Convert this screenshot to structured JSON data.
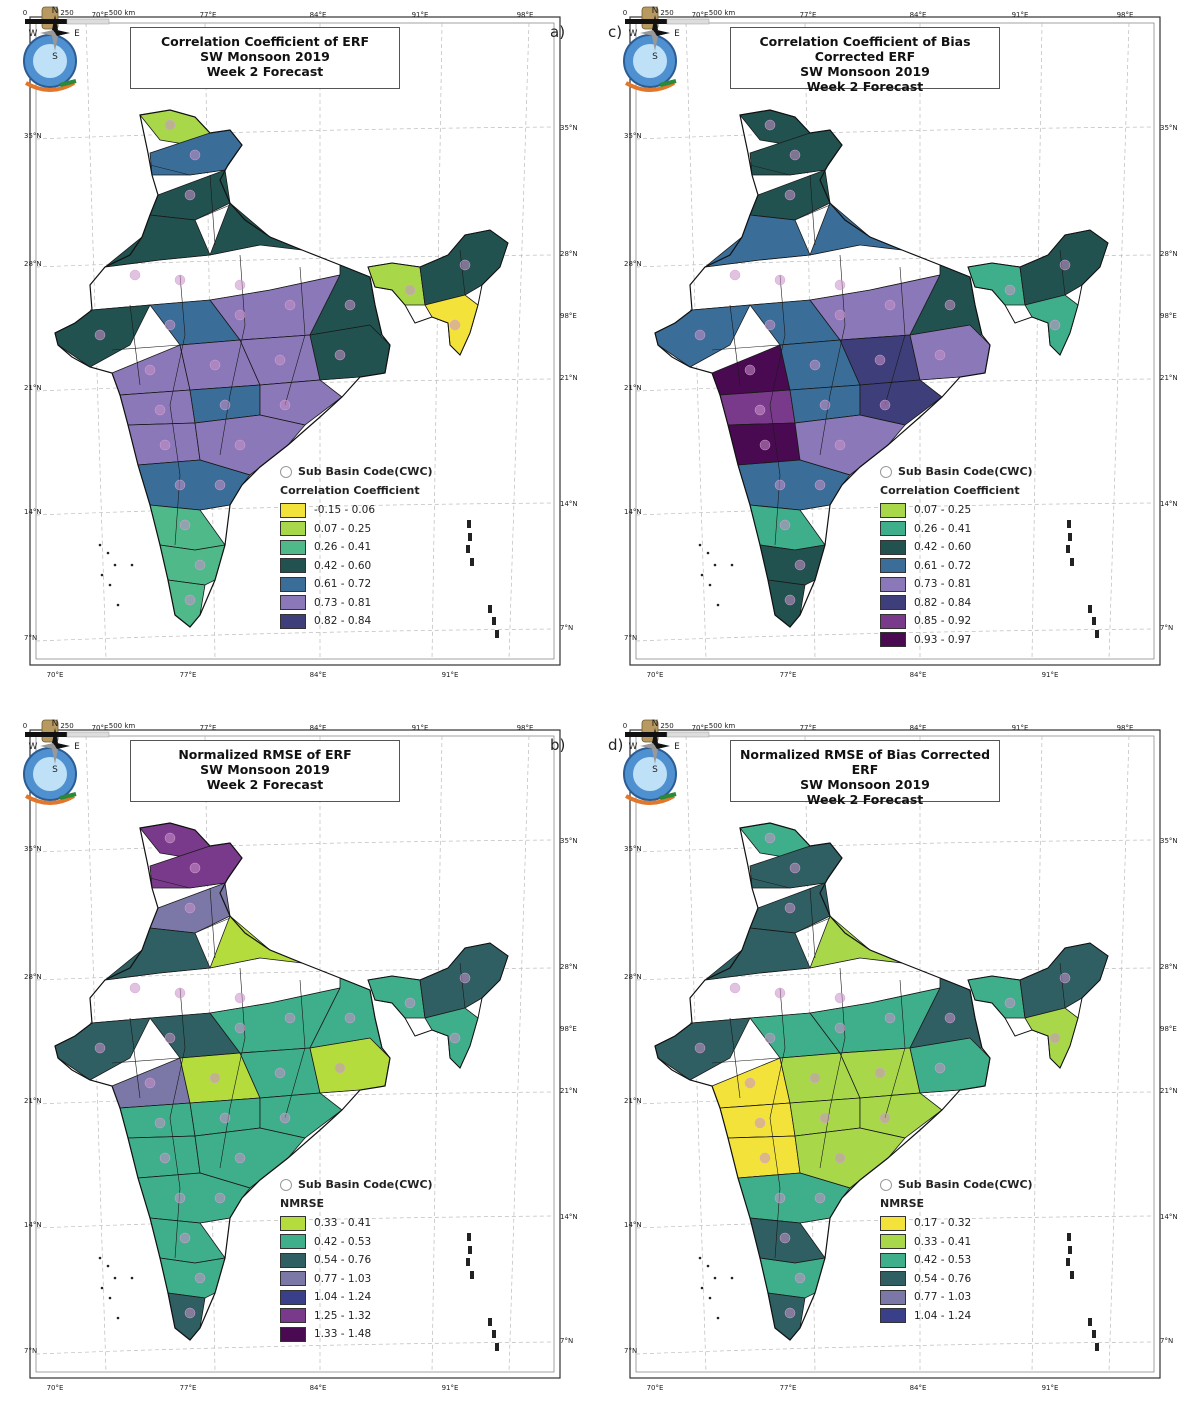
{
  "panels": [
    {
      "id": "a",
      "letter": "a)",
      "title": [
        "Correlation Coefficient of ERF",
        "SW Monsoon 2019",
        "Week 2 Forecast"
      ],
      "legend_title": "Correlation Coefficient",
      "subbasin_label": "Sub Basin Code(CWC)",
      "legend": [
        {
          "label": "-0.15 - 0.06",
          "color": "#f3e23a"
        },
        {
          "label": "0.07 - 0.25",
          "color": "#a8d84a"
        },
        {
          "label": "0.26 - 0.41",
          "color": "#4fb98a"
        },
        {
          "label": "0.42 - 0.60",
          "color": "#22524f"
        },
        {
          "label": "0.61 - 0.72",
          "color": "#3a6e98"
        },
        {
          "label": "0.73 - 0.81",
          "color": "#8b78b8"
        },
        {
          "label": "0.82 - 0.84",
          "color": "#3e3f7a"
        }
      ],
      "palette": [
        "#22524f",
        "#3a6e98",
        "#8b78b8",
        "#8b78b8",
        "#3a6e98",
        "#22524f",
        "#4fb98a",
        "#a8d84a",
        "#3e3f7a",
        "#f3e23a"
      ]
    },
    {
      "id": "c",
      "letter": "c)",
      "title": [
        "Correlation Coefficient of Bias Corrected ERF",
        "SW Monsoon 2019",
        "Week 2 Forecast"
      ],
      "legend_title": "Correlation Coefficient",
      "subbasin_label": "Sub Basin Code(CWC)",
      "legend": [
        {
          "label": "0.07 - 0.25",
          "color": "#a8d84a"
        },
        {
          "label": "0.26 - 0.41",
          "color": "#3fae8a"
        },
        {
          "label": "0.42 - 0.60",
          "color": "#22524f"
        },
        {
          "label": "0.61 - 0.72",
          "color": "#3a6e98"
        },
        {
          "label": "0.73 - 0.81",
          "color": "#8b78b8"
        },
        {
          "label": "0.82 - 0.84",
          "color": "#3e3f7a"
        },
        {
          "label": "0.85 - 0.92",
          "color": "#7a3a8c"
        },
        {
          "label": "0.93 - 0.97",
          "color": "#4a0a52"
        }
      ],
      "palette": [
        "#3a6e98",
        "#22524f",
        "#8b78b8",
        "#3a6e98",
        "#3e3f7a",
        "#22524f",
        "#7a3a8c",
        "#3fae8a",
        "#8b78b8",
        "#4a0a52"
      ]
    },
    {
      "id": "b",
      "letter": "b)",
      "title": [
        "Normalized RMSE of ERF",
        "SW Monsoon 2019",
        "Week 2 Forecast"
      ],
      "legend_title": "NMRSE",
      "subbasin_label": "Sub Basin Code(CWC)",
      "legend": [
        {
          "label": "0.33 - 0.41",
          "color": "#b4dc3c"
        },
        {
          "label": "0.42 - 0.53",
          "color": "#3fae8a"
        },
        {
          "label": "0.54 - 0.76",
          "color": "#2f5f62"
        },
        {
          "label": "0.77 - 1.03",
          "color": "#7b78a8"
        },
        {
          "label": "1.04 - 1.24",
          "color": "#3a3f8a"
        },
        {
          "label": "1.25 - 1.32",
          "color": "#7a3a8c"
        },
        {
          "label": "1.33 - 1.48",
          "color": "#4a0a52"
        }
      ],
      "palette": [
        "#2f5f62",
        "#3fae8a",
        "#2f5f62",
        "#3fae8a",
        "#7b78a8",
        "#3fae8a",
        "#b4dc3c",
        "#2f5f62",
        "#7a3a8c",
        "#3fae8a"
      ]
    },
    {
      "id": "d",
      "letter": "d)",
      "title": [
        "Normalized RMSE of Bias Corrected ERF",
        "SW Monsoon 2019",
        "Week 2 Forecast"
      ],
      "legend_title": "NMRSE",
      "subbasin_label": "Sub Basin Code(CWC)",
      "legend": [
        {
          "label": "0.17 - 0.32",
          "color": "#f3e23a"
        },
        {
          "label": "0.33 - 0.41",
          "color": "#a8d84a"
        },
        {
          "label": "0.42 - 0.53",
          "color": "#3fae8a"
        },
        {
          "label": "0.54 - 0.76",
          "color": "#2f5f62"
        },
        {
          "label": "0.77 - 1.03",
          "color": "#7b78a8"
        },
        {
          "label": "1.04 - 1.24",
          "color": "#3a3f8a"
        }
      ],
      "palette": [
        "#3fae8a",
        "#2f5f62",
        "#a8d84a",
        "#3fae8a",
        "#2f5f62",
        "#a8d84a",
        "#f3e23a",
        "#3fae8a",
        "#7b78a8",
        "#2f5f62"
      ]
    }
  ],
  "axes": {
    "lon_labels_top": [
      "70°E",
      "77°E",
      "84°E",
      "91°E",
      "98°E"
    ],
    "lon_labels_bottom": [
      "70°E",
      "77°E",
      "84°E",
      "91°E"
    ],
    "lat_labels_left": [
      "35°N",
      "28°N",
      "21°N",
      "14°N",
      "7°N"
    ],
    "lat_labels_right": [
      "35°N",
      "28°N",
      "98°E",
      "21°N",
      "14°N",
      "7°N"
    ]
  },
  "compass": {
    "n": "N",
    "s": "S",
    "e": "E",
    "w": "W"
  },
  "scale_bar": {
    "labels": [
      "0",
      "250",
      "500 km"
    ]
  }
}
